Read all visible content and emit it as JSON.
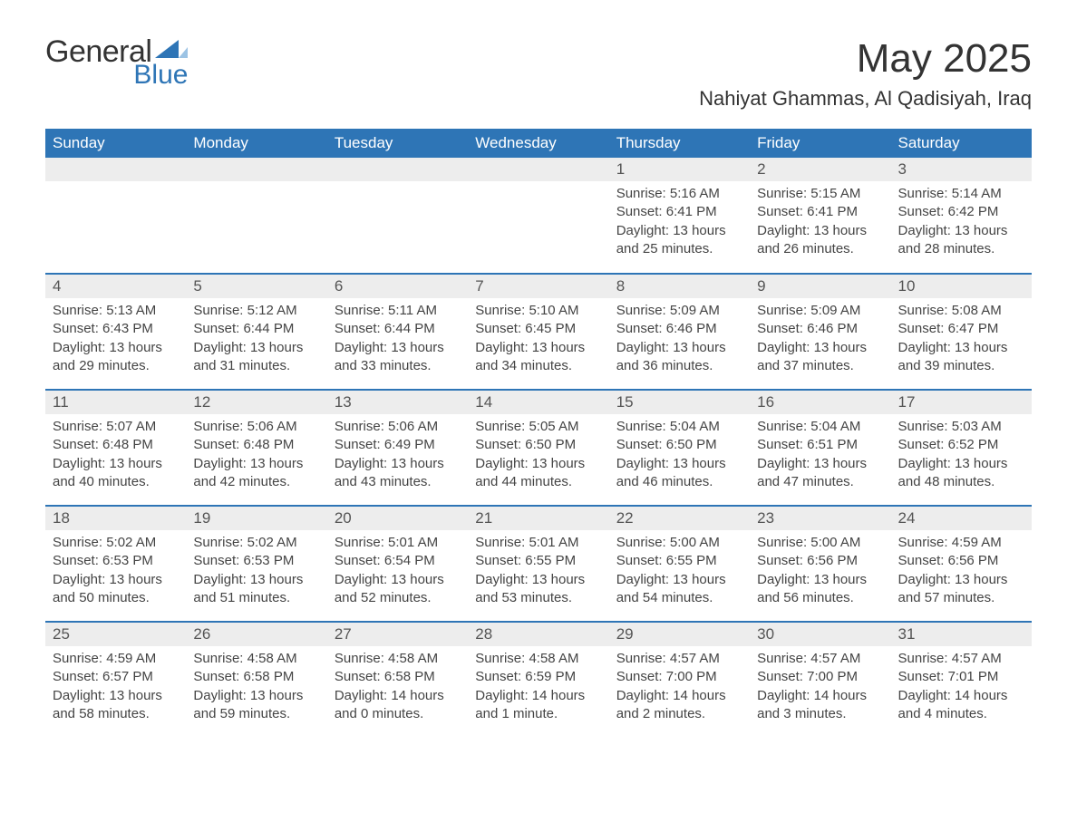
{
  "logo": {
    "text1": "General",
    "text2": "Blue",
    "accent_color": "#2e75b6"
  },
  "title": "May 2025",
  "location": "Nahiyat Ghammas, Al Qadisiyah, Iraq",
  "colors": {
    "header_bg": "#2e75b6",
    "header_fg": "#ffffff",
    "daynum_bg": "#ededed",
    "text": "#333333",
    "row_divider": "#2e75b6"
  },
  "typography": {
    "title_fontsize": 44,
    "location_fontsize": 22,
    "dayheader_fontsize": 17,
    "body_fontsize": 15
  },
  "calendar": {
    "type": "table",
    "columns": [
      "Sunday",
      "Monday",
      "Tuesday",
      "Wednesday",
      "Thursday",
      "Friday",
      "Saturday"
    ],
    "weeks": [
      [
        null,
        null,
        null,
        null,
        {
          "n": "1",
          "sunrise": "5:16 AM",
          "sunset": "6:41 PM",
          "daylight": "13 hours and 25 minutes."
        },
        {
          "n": "2",
          "sunrise": "5:15 AM",
          "sunset": "6:41 PM",
          "daylight": "13 hours and 26 minutes."
        },
        {
          "n": "3",
          "sunrise": "5:14 AM",
          "sunset": "6:42 PM",
          "daylight": "13 hours and 28 minutes."
        }
      ],
      [
        {
          "n": "4",
          "sunrise": "5:13 AM",
          "sunset": "6:43 PM",
          "daylight": "13 hours and 29 minutes."
        },
        {
          "n": "5",
          "sunrise": "5:12 AM",
          "sunset": "6:44 PM",
          "daylight": "13 hours and 31 minutes."
        },
        {
          "n": "6",
          "sunrise": "5:11 AM",
          "sunset": "6:44 PM",
          "daylight": "13 hours and 33 minutes."
        },
        {
          "n": "7",
          "sunrise": "5:10 AM",
          "sunset": "6:45 PM",
          "daylight": "13 hours and 34 minutes."
        },
        {
          "n": "8",
          "sunrise": "5:09 AM",
          "sunset": "6:46 PM",
          "daylight": "13 hours and 36 minutes."
        },
        {
          "n": "9",
          "sunrise": "5:09 AM",
          "sunset": "6:46 PM",
          "daylight": "13 hours and 37 minutes."
        },
        {
          "n": "10",
          "sunrise": "5:08 AM",
          "sunset": "6:47 PM",
          "daylight": "13 hours and 39 minutes."
        }
      ],
      [
        {
          "n": "11",
          "sunrise": "5:07 AM",
          "sunset": "6:48 PM",
          "daylight": "13 hours and 40 minutes."
        },
        {
          "n": "12",
          "sunrise": "5:06 AM",
          "sunset": "6:48 PM",
          "daylight": "13 hours and 42 minutes."
        },
        {
          "n": "13",
          "sunrise": "5:06 AM",
          "sunset": "6:49 PM",
          "daylight": "13 hours and 43 minutes."
        },
        {
          "n": "14",
          "sunrise": "5:05 AM",
          "sunset": "6:50 PM",
          "daylight": "13 hours and 44 minutes."
        },
        {
          "n": "15",
          "sunrise": "5:04 AM",
          "sunset": "6:50 PM",
          "daylight": "13 hours and 46 minutes."
        },
        {
          "n": "16",
          "sunrise": "5:04 AM",
          "sunset": "6:51 PM",
          "daylight": "13 hours and 47 minutes."
        },
        {
          "n": "17",
          "sunrise": "5:03 AM",
          "sunset": "6:52 PM",
          "daylight": "13 hours and 48 minutes."
        }
      ],
      [
        {
          "n": "18",
          "sunrise": "5:02 AM",
          "sunset": "6:53 PM",
          "daylight": "13 hours and 50 minutes."
        },
        {
          "n": "19",
          "sunrise": "5:02 AM",
          "sunset": "6:53 PM",
          "daylight": "13 hours and 51 minutes."
        },
        {
          "n": "20",
          "sunrise": "5:01 AM",
          "sunset": "6:54 PM",
          "daylight": "13 hours and 52 minutes."
        },
        {
          "n": "21",
          "sunrise": "5:01 AM",
          "sunset": "6:55 PM",
          "daylight": "13 hours and 53 minutes."
        },
        {
          "n": "22",
          "sunrise": "5:00 AM",
          "sunset": "6:55 PM",
          "daylight": "13 hours and 54 minutes."
        },
        {
          "n": "23",
          "sunrise": "5:00 AM",
          "sunset": "6:56 PM",
          "daylight": "13 hours and 56 minutes."
        },
        {
          "n": "24",
          "sunrise": "4:59 AM",
          "sunset": "6:56 PM",
          "daylight": "13 hours and 57 minutes."
        }
      ],
      [
        {
          "n": "25",
          "sunrise": "4:59 AM",
          "sunset": "6:57 PM",
          "daylight": "13 hours and 58 minutes."
        },
        {
          "n": "26",
          "sunrise": "4:58 AM",
          "sunset": "6:58 PM",
          "daylight": "13 hours and 59 minutes."
        },
        {
          "n": "27",
          "sunrise": "4:58 AM",
          "sunset": "6:58 PM",
          "daylight": "14 hours and 0 minutes."
        },
        {
          "n": "28",
          "sunrise": "4:58 AM",
          "sunset": "6:59 PM",
          "daylight": "14 hours and 1 minute."
        },
        {
          "n": "29",
          "sunrise": "4:57 AM",
          "sunset": "7:00 PM",
          "daylight": "14 hours and 2 minutes."
        },
        {
          "n": "30",
          "sunrise": "4:57 AM",
          "sunset": "7:00 PM",
          "daylight": "14 hours and 3 minutes."
        },
        {
          "n": "31",
          "sunrise": "4:57 AM",
          "sunset": "7:01 PM",
          "daylight": "14 hours and 4 minutes."
        }
      ]
    ],
    "labels": {
      "sunrise": "Sunrise:",
      "sunset": "Sunset:",
      "daylight": "Daylight:"
    }
  }
}
